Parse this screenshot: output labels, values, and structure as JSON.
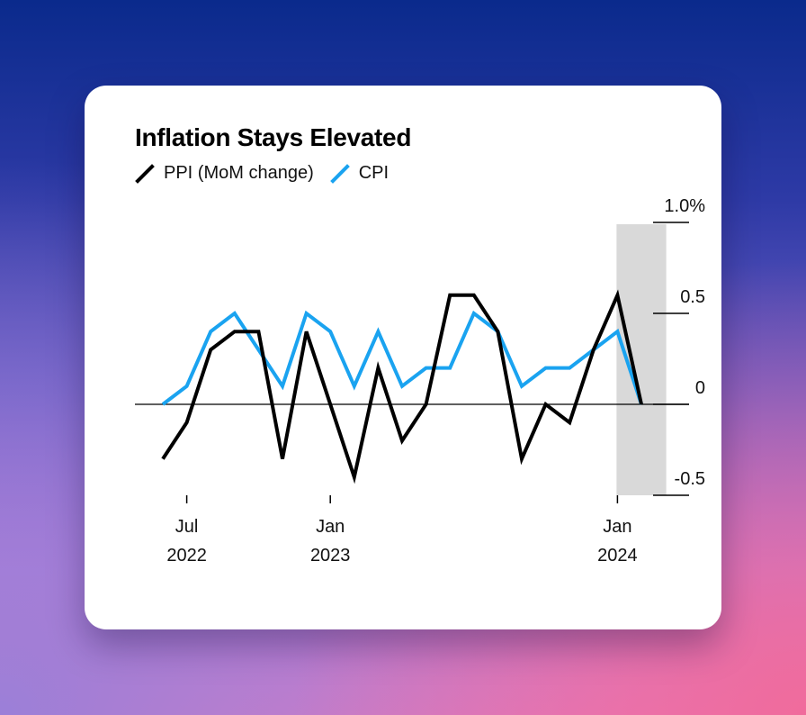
{
  "chart_data": {
    "type": "line",
    "title": "Inflation Stays Elevated",
    "unit_suffix": "%",
    "x_dates": [
      "2022-07",
      "2022-08",
      "2022-09",
      "2022-10",
      "2022-11",
      "2022-12",
      "2023-01",
      "2023-02",
      "2023-03",
      "2023-04",
      "2023-05",
      "2023-06",
      "2023-07",
      "2023-08",
      "2023-09",
      "2023-10",
      "2023-11",
      "2023-12",
      "2024-01",
      "2024-02",
      "2024-03"
    ],
    "series": [
      {
        "name": "PPI (MoM change)",
        "color": "#000000",
        "x": [
          "2022-06",
          "2022-07",
          "2022-08",
          "2022-09",
          "2022-10",
          "2022-11",
          "2022-12",
          "2023-01",
          "2023-02",
          "2023-03",
          "2023-04",
          "2023-05",
          "2023-06",
          "2023-07",
          "2023-08",
          "2023-09",
          "2023-10",
          "2023-11",
          "2023-12",
          "2024-01",
          "2024-02",
          "2024-03"
        ],
        "values": [
          -0.3,
          -0.1,
          0.3,
          0.4,
          0.4,
          -0.3,
          0.4,
          0.0,
          -0.4,
          0.2,
          -0.2,
          0.0,
          0.6,
          0.6,
          0.4,
          -0.3,
          0.0,
          -0.1,
          0.3,
          0.6,
          0.0,
          0.0
        ]
      },
      {
        "name": "CPI",
        "color": "#1aa3f0",
        "x": [
          "2022-06",
          "2022-07",
          "2022-08",
          "2022-09",
          "2022-10",
          "2022-11",
          "2022-12",
          "2023-01",
          "2023-02",
          "2023-03",
          "2023-04",
          "2023-05",
          "2023-06",
          "2023-07",
          "2023-08",
          "2023-09",
          "2023-10",
          "2023-11",
          "2023-12",
          "2024-01",
          "2024-02",
          "2024-03"
        ],
        "values": [
          0.0,
          0.1,
          0.4,
          0.5,
          0.3,
          0.1,
          0.5,
          0.4,
          0.1,
          0.4,
          0.1,
          0.2,
          0.2,
          0.5,
          0.4,
          0.1,
          0.2,
          0.2,
          0.3,
          0.4,
          0.0,
          0.0
        ]
      }
    ],
    "y_ticks": [
      {
        "value": 1.0,
        "label": "1.0%"
      },
      {
        "value": 0.5,
        "label": "0.5"
      },
      {
        "value": 0,
        "label": "0"
      },
      {
        "value": -0.5,
        "label": "-0.5"
      }
    ],
    "x_ticks": [
      {
        "date": "2022-07",
        "month": "Jul",
        "year": "2022"
      },
      {
        "date": "2023-01",
        "month": "Jan",
        "year": "2023"
      },
      {
        "date": "2024-01",
        "month": "Jan",
        "year": "2024"
      }
    ],
    "ylim": [
      -0.5,
      1.0
    ],
    "shaded_period": [
      "2024-01",
      "2024-03"
    ],
    "legend_position": "top-left",
    "grid": false
  }
}
